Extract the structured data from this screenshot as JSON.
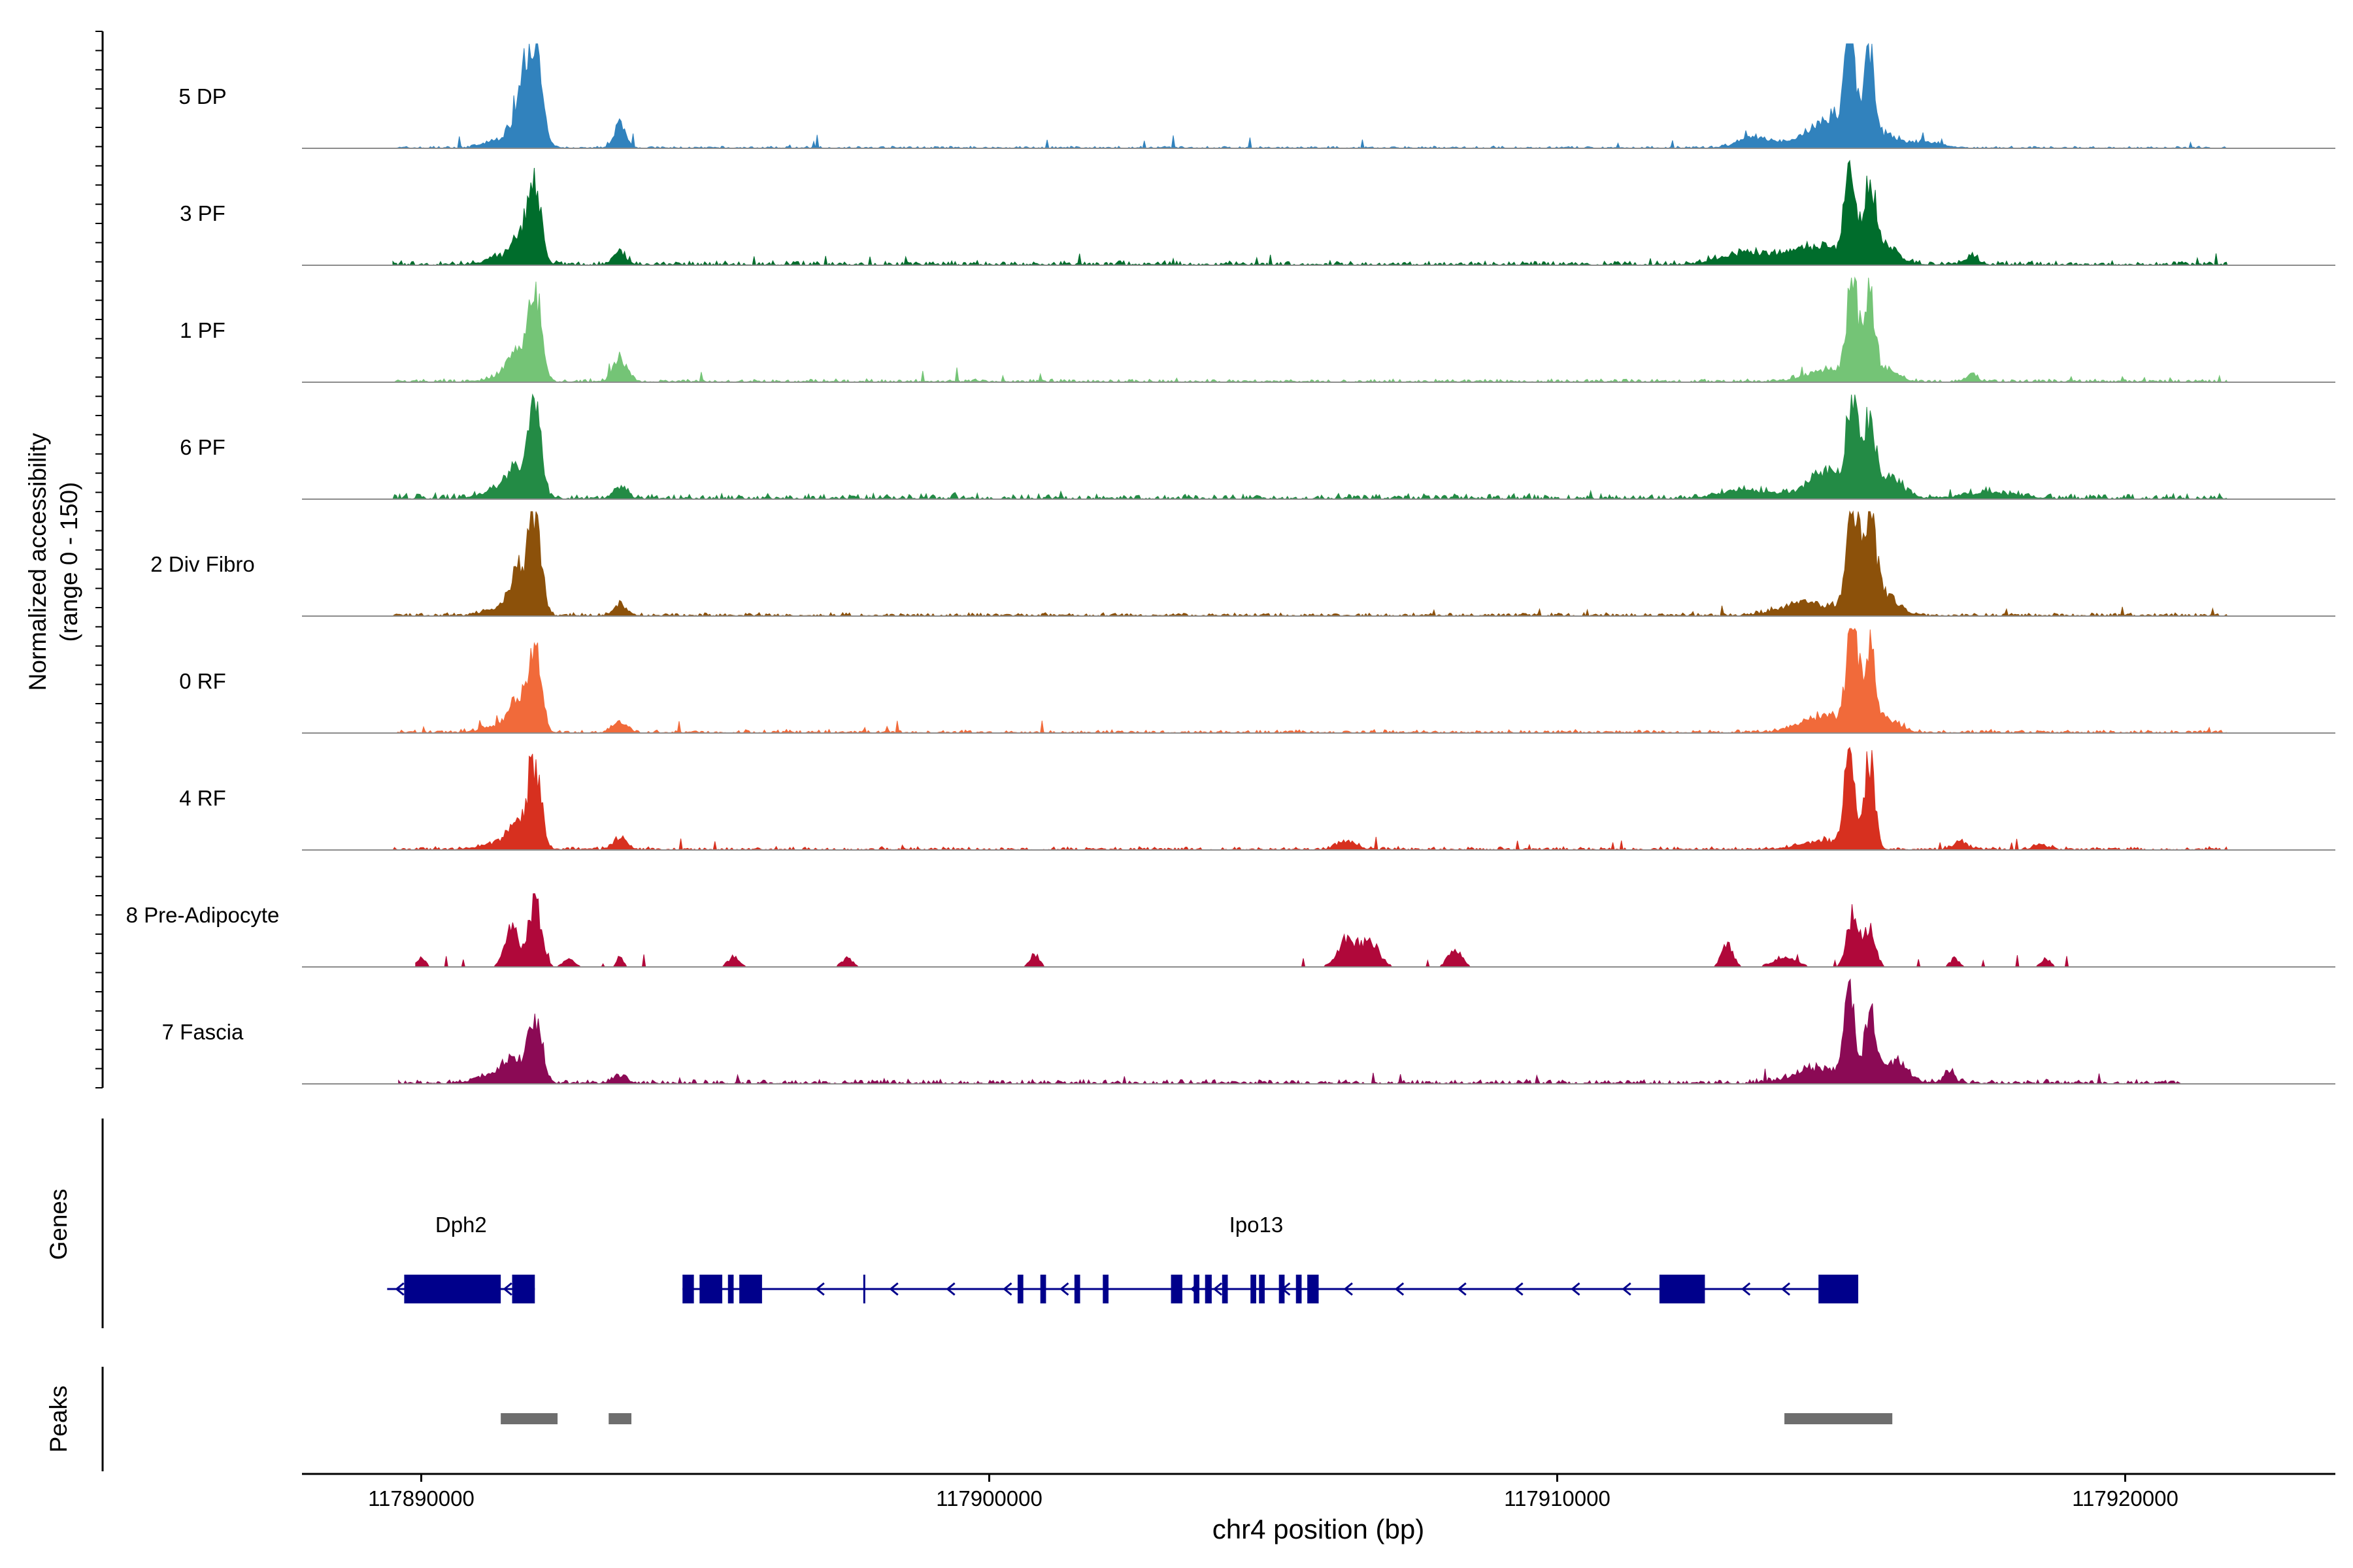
{
  "chart_data": {
    "type": "area",
    "title": "",
    "region": "chr4",
    "xlabel": "chr4 position (bp)",
    "ylabel_line1": "Normalized accessibility",
    "ylabel_line2": "(range 0 - 150)",
    "ylim": [
      0,
      150
    ],
    "xlim": [
      117887900,
      117923700
    ],
    "x_ticks": [
      117890000,
      117900000,
      117910000,
      117920000
    ],
    "x_tick_labels": [
      "117890000",
      "117900000",
      "117910000",
      "117920000"
    ],
    "genes_label": "Genes",
    "peaks_label": "Peaks",
    "tracks": [
      {
        "name": "5 DP",
        "color": "#3182bd",
        "extent": [
          117889500,
          117921800
        ],
        "baseline": 2,
        "peaks": [
          [
            117891800,
            70,
            150
          ],
          [
            117892000,
            132,
            120
          ],
          [
            117893500,
            34,
            110
          ],
          [
            117891500,
            14,
            300
          ],
          [
            117914800,
            20,
            350
          ],
          [
            117915200,
            32,
            600
          ],
          [
            117915150,
            145,
            80
          ],
          [
            117915480,
            130,
            80
          ],
          [
            117913500,
            14,
            300
          ],
          [
            117916600,
            6,
            200
          ]
        ]
      },
      {
        "name": "3 PF",
        "color": "#006d2c",
        "extent": [
          117889500,
          117921800
        ],
        "baseline": 4,
        "peaks": [
          [
            117891800,
            40,
            160
          ],
          [
            117892000,
            95,
            110
          ],
          [
            117893500,
            16,
            120
          ],
          [
            117891500,
            12,
            300
          ],
          [
            117913300,
            16,
            450
          ],
          [
            117914600,
            26,
            500
          ],
          [
            117915150,
            148,
            90
          ],
          [
            117915500,
            108,
            90
          ],
          [
            117915700,
            30,
            250
          ],
          [
            117917300,
            12,
            120
          ]
        ]
      },
      {
        "name": "1 PF",
        "color": "#74c476",
        "extent": [
          117889500,
          117921800
        ],
        "baseline": 3,
        "peaks": [
          [
            117891700,
            40,
            140
          ],
          [
            117892000,
            130,
            110
          ],
          [
            117893500,
            32,
            120
          ],
          [
            117891500,
            12,
            250
          ],
          [
            117914800,
            18,
            400
          ],
          [
            117915200,
            150,
            90
          ],
          [
            117915500,
            120,
            90
          ],
          [
            117915800,
            18,
            200
          ],
          [
            117917300,
            10,
            100
          ]
        ]
      },
      {
        "name": "6 PF",
        "color": "#238b45",
        "extent": [
          117889500,
          117921800
        ],
        "baseline": 5,
        "peaks": [
          [
            117891700,
            38,
            150
          ],
          [
            117892000,
            128,
            110
          ],
          [
            117893500,
            16,
            120
          ],
          [
            117891400,
            14,
            300
          ],
          [
            117913400,
            12,
            450
          ],
          [
            117914800,
            40,
            350
          ],
          [
            117915200,
            140,
            90
          ],
          [
            117915500,
            100,
            90
          ],
          [
            117915800,
            30,
            250
          ],
          [
            117917600,
            8,
            500
          ]
        ]
      },
      {
        "name": "2 Div Fibro",
        "color": "#8c510a",
        "extent": [
          117889500,
          117921800
        ],
        "baseline": 3,
        "peaks": [
          [
            117891700,
            60,
            140
          ],
          [
            117892000,
            140,
            110
          ],
          [
            117893500,
            16,
            120
          ],
          [
            117891400,
            10,
            300
          ],
          [
            117914400,
            18,
            450
          ],
          [
            117915200,
            150,
            100
          ],
          [
            117915500,
            118,
            100
          ],
          [
            117915600,
            40,
            300
          ]
        ]
      },
      {
        "name": "0 RF",
        "color": "#f16a3a",
        "extent": [
          117889500,
          117921800
        ],
        "baseline": 3,
        "peaks": [
          [
            117891700,
            42,
            140
          ],
          [
            117892000,
            118,
            110
          ],
          [
            117893500,
            16,
            120
          ],
          [
            117891400,
            10,
            300
          ],
          [
            117914700,
            24,
            400
          ],
          [
            117915200,
            150,
            100
          ],
          [
            117915500,
            110,
            90
          ],
          [
            117915800,
            20,
            220
          ]
        ]
      },
      {
        "name": "4 RF",
        "color": "#d7301f",
        "extent": [
          117889500,
          117921800
        ],
        "baseline": 3,
        "peaks": [
          [
            117891700,
            34,
            140
          ],
          [
            117892000,
            116,
            110
          ],
          [
            117893500,
            18,
            120
          ],
          [
            117891400,
            10,
            300
          ],
          [
            117906300,
            12,
            160
          ],
          [
            117914700,
            12,
            400
          ],
          [
            117915150,
            150,
            90
          ],
          [
            117915500,
            125,
            90
          ],
          [
            117917100,
            12,
            120
          ],
          [
            117918500,
            8,
            120
          ]
        ]
      },
      {
        "name": "8 Pre-Adipocyte",
        "color": "#b0083a",
        "extent": [
          117889900,
          117919400
        ],
        "baseline": 0,
        "peaks": [
          [
            117890000,
            14,
            70
          ],
          [
            117891600,
            55,
            120
          ],
          [
            117892000,
            92,
            110
          ],
          [
            117892600,
            12,
            100
          ],
          [
            117893500,
            14,
            60
          ],
          [
            117895500,
            14,
            100
          ],
          [
            117897500,
            12,
            100
          ],
          [
            117900800,
            18,
            80
          ],
          [
            117906300,
            40,
            160
          ],
          [
            117906700,
            36,
            160
          ],
          [
            117908200,
            24,
            120
          ],
          [
            117913000,
            32,
            100
          ],
          [
            117914000,
            14,
            200
          ],
          [
            117915200,
            74,
            100
          ],
          [
            117915500,
            56,
            100
          ],
          [
            117917000,
            12,
            80
          ],
          [
            117918600,
            12,
            80
          ]
        ]
      },
      {
        "name": "7 Fascia",
        "color": "#8b0a55",
        "extent": [
          117889600,
          117921000
        ],
        "baseline": 4,
        "peaks": [
          [
            117891600,
            26,
            160
          ],
          [
            117892000,
            86,
            120
          ],
          [
            117893500,
            12,
            120
          ],
          [
            117891300,
            14,
            300
          ],
          [
            117914600,
            22,
            400
          ],
          [
            117915150,
            130,
            90
          ],
          [
            117915500,
            100,
            90
          ],
          [
            117915900,
            30,
            250
          ],
          [
            117916900,
            16,
            100
          ]
        ]
      }
    ],
    "genes": [
      {
        "name": "Dph2",
        "label_x": 117890700,
        "start": 117889400,
        "end": 117892000,
        "exons": [
          [
            117889700,
            117891400
          ],
          [
            117891600,
            117892000
          ]
        ],
        "arrows": [
          117889600,
          117891500
        ]
      },
      {
        "name": "Ipo13",
        "label_x": 117904700,
        "start": 117894600,
        "end": 117915200,
        "exons": [
          [
            117894600,
            117894800
          ],
          [
            117894900,
            117895300
          ],
          [
            117895400,
            117895500
          ],
          [
            117895600,
            117896000
          ],
          [
            117900500,
            117900600
          ],
          [
            117900900,
            117901000
          ],
          [
            117901500,
            117901600
          ],
          [
            117902000,
            117902100
          ],
          [
            117903200,
            117903400
          ],
          [
            117903600,
            117903700
          ],
          [
            117903800,
            117903900
          ],
          [
            117904100,
            117904200
          ],
          [
            117904600,
            117904700
          ],
          [
            117904750,
            117904850
          ],
          [
            117905100,
            117905200
          ],
          [
            117905400,
            117905500
          ],
          [
            117905600,
            117905800
          ],
          [
            117911800,
            117912600
          ],
          [
            117914600,
            117915300
          ]
        ],
        "introns_lines": [
          117897800,
          117903900
        ],
        "arrows": [
          117895100,
          117895700,
          117897000,
          117898300,
          117899300,
          117900300,
          117901300,
          117903600,
          117904000,
          117905200,
          117906300,
          117907200,
          117908300,
          117909300,
          117910300,
          117911200,
          117913300,
          117914000
        ]
      }
    ],
    "peaks_regions": [
      [
        117891400,
        117892400
      ],
      [
        117893300,
        117893700
      ],
      [
        117914000,
        117915900
      ]
    ]
  }
}
